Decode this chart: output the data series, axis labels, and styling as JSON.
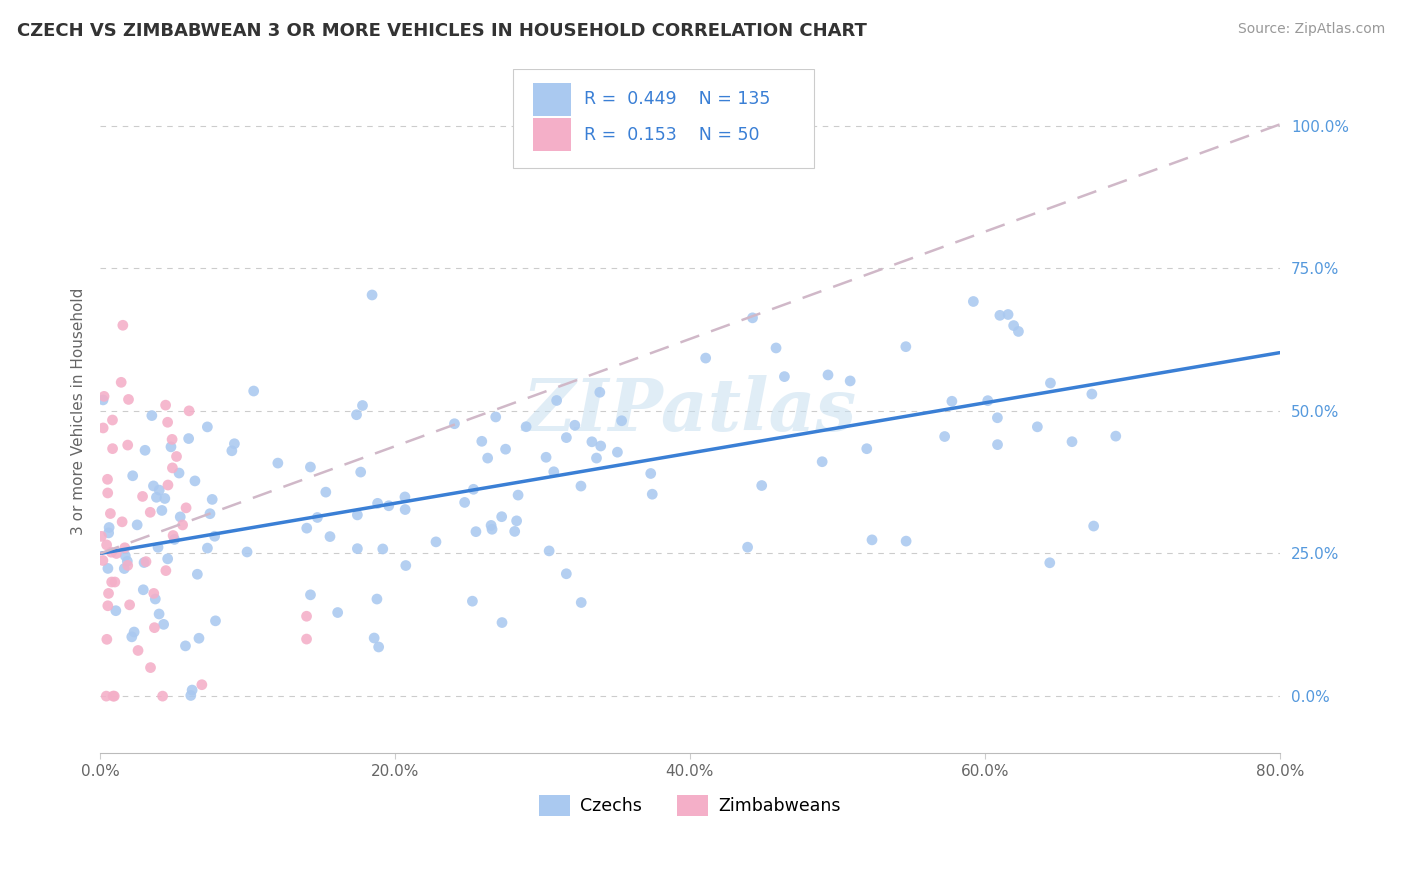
{
  "title": "CZECH VS ZIMBABWEAN 3 OR MORE VEHICLES IN HOUSEHOLD CORRELATION CHART",
  "source": "Source: ZipAtlas.com",
  "ylabel": "3 or more Vehicles in Household",
  "xmin": 0.0,
  "xmax": 0.8,
  "ymin": -0.1,
  "ymax": 1.1,
  "xticks": [
    0.0,
    0.2,
    0.4,
    0.6,
    0.8
  ],
  "xtick_labels": [
    "0.0%",
    "20.0%",
    "40.0%",
    "60.0%",
    "80.0%"
  ],
  "yticks": [
    0.0,
    0.25,
    0.5,
    0.75,
    1.0
  ],
  "ytick_labels": [
    "0.0%",
    "25.0%",
    "50.0%",
    "75.0%",
    "100.0%"
  ],
  "czech_R": 0.449,
  "czech_N": 135,
  "zimbabwean_R": 0.153,
  "zimbabwean_N": 50,
  "czech_color": "#aac9f0",
  "zimbabwean_color": "#f4afc8",
  "czech_line_color": "#3a7fd5",
  "zimbabwean_line_color": "#c8c8c8",
  "watermark": "ZIPatlas",
  "background_color": "#ffffff",
  "grid_color": "#cccccc",
  "title_color": "#333333",
  "source_color": "#999999",
  "ytick_color": "#5599dd"
}
